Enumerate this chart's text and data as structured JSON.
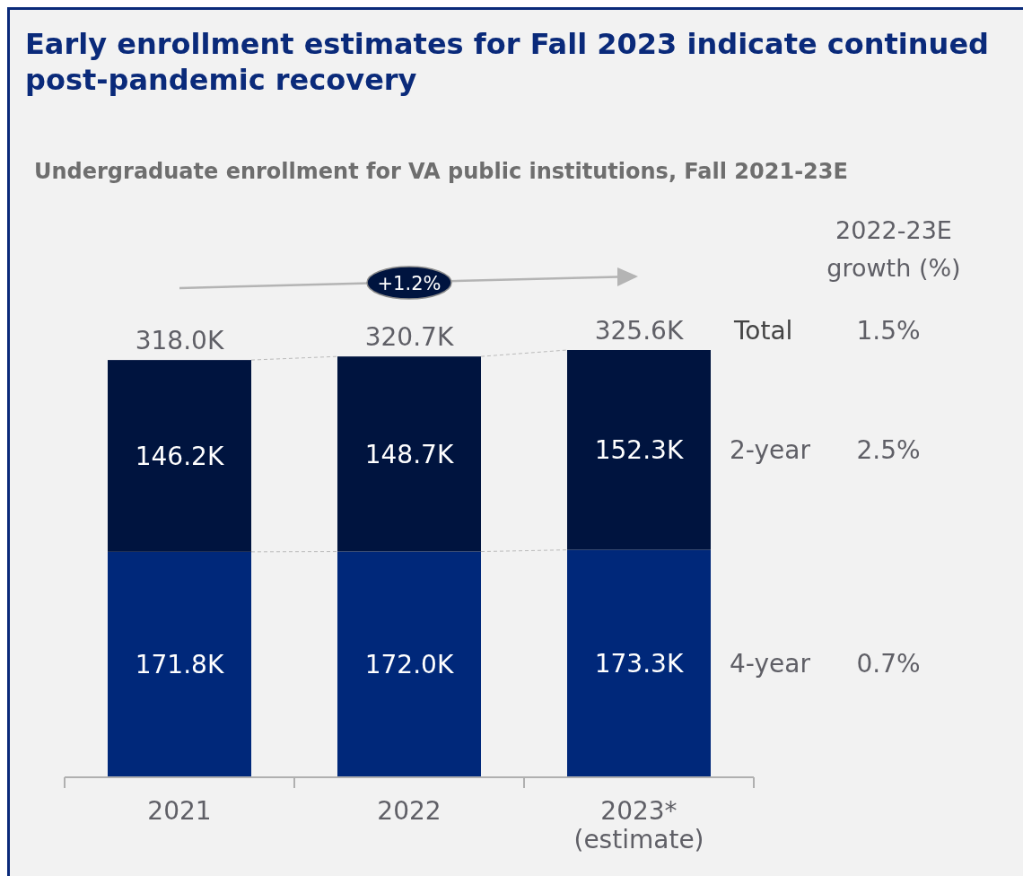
{
  "chart_data": {
    "type": "bar",
    "title": "Early enrollment estimates for Fall 2023 indicate continued\npost-pandemic recovery",
    "subtitle": "Undergraduate enrollment for VA public institutions, Fall 2021-23E",
    "categories": [
      "2021",
      "2022",
      "2023*\n(estimate)"
    ],
    "stacked": true,
    "series": [
      {
        "name": "4-year",
        "color": "#00287a",
        "values": [
          171.8,
          172.0,
          173.3
        ],
        "value_labels": [
          "171.8K",
          "172.0K",
          "173.3K"
        ]
      },
      {
        "name": "2-year",
        "color": "#00143f",
        "values": [
          146.2,
          148.7,
          152.3
        ],
        "value_labels": [
          "146.2K",
          "148.7K",
          "152.3K"
        ]
      }
    ],
    "totals": [
      "318.0K",
      "320.7K",
      "325.6K"
    ],
    "annotations": [
      "+1.2%",
      "2022-23E\ngrowth (%)",
      "Total",
      "1.5%",
      "2.5%",
      "0.7%"
    ]
  }
}
